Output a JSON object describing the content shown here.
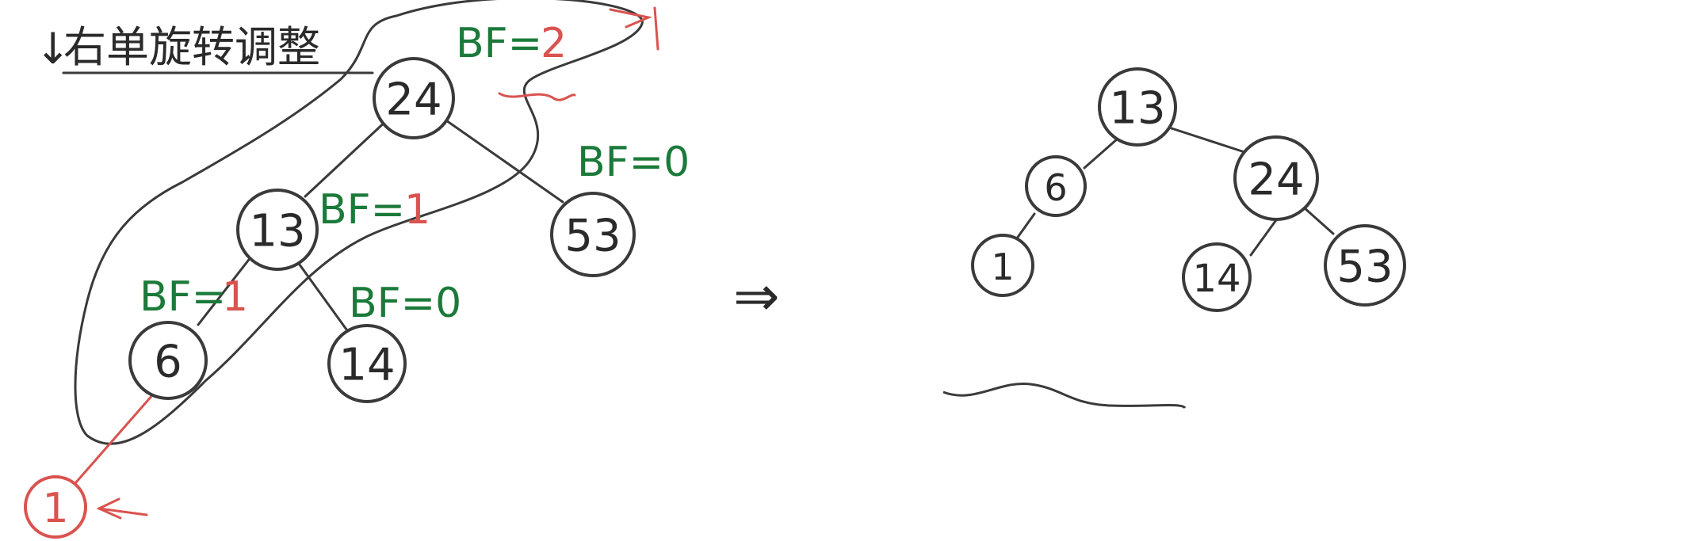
{
  "title": "右单旋转调整",
  "colors": {
    "ink": "#3a3a3a",
    "green": "#1b7a3a",
    "red": "#d9534f"
  },
  "left_tree": {
    "nodes": {
      "n24": "24",
      "n13": "13",
      "n53": "53",
      "n6": "6",
      "n14": "14",
      "n1": "1"
    },
    "bf": {
      "n24": "BF=",
      "n24_red": "2",
      "n53": "BF=0",
      "n13": "BF=",
      "n13_red": "1",
      "n6": "BF=",
      "n6_red": "1",
      "n14": "BF=0"
    }
  },
  "arrow": "⇒",
  "right_tree": {
    "nodes": {
      "n13": "13",
      "n6": "6",
      "n24": "24",
      "n1": "1",
      "n14": "14",
      "n53": "53"
    }
  }
}
